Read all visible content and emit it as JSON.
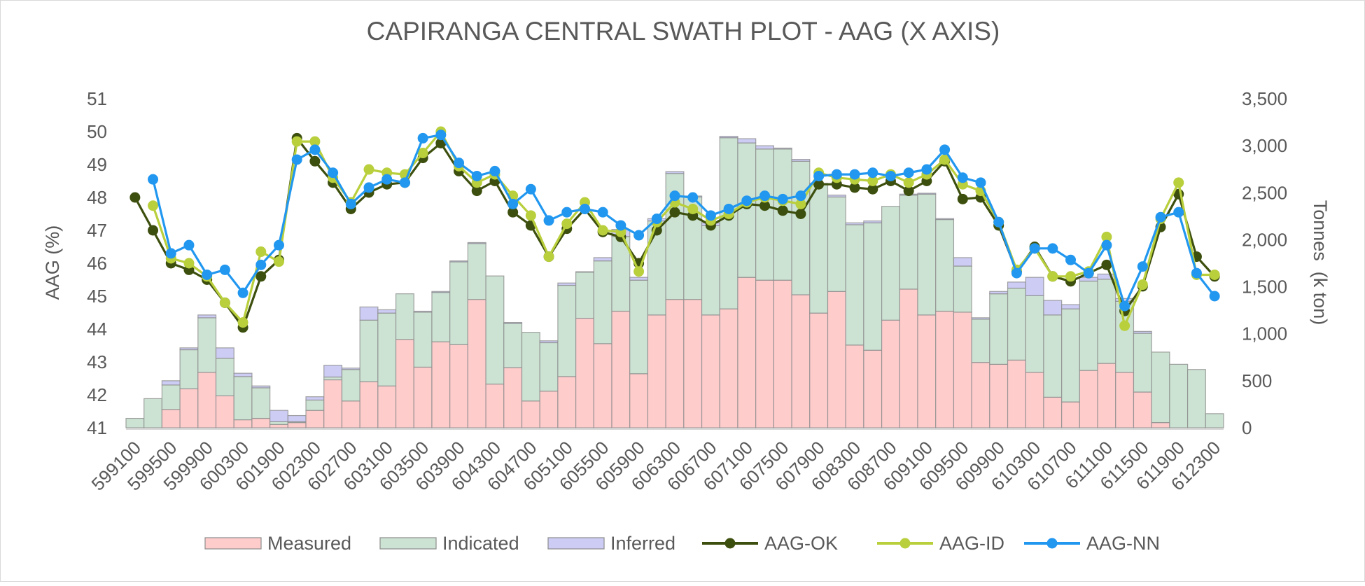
{
  "chart_data": {
    "type": "bar",
    "title": "CAPIRANGA CENTRAL SWATH PLOT - AAG (X AXIS)",
    "xlabel": "",
    "ylabel": "AAG (%)",
    "y2label": "Tonnes  (k ton)",
    "ylim": [
      41,
      51
    ],
    "y2lim": [
      0,
      3500
    ],
    "yticks": [
      "51",
      "50",
      "49",
      "48",
      "47",
      "46",
      "45",
      "44",
      "43",
      "42",
      "41"
    ],
    "y2ticks": [
      "3,500",
      "3,000",
      "2,500",
      "2,000",
      "1,500",
      "1,000",
      "500",
      "0"
    ],
    "x_tick_labels": [
      "599100",
      "599500",
      "599900",
      "600300",
      "601900",
      "602300",
      "602700",
      "603100",
      "603500",
      "603900",
      "604300",
      "604700",
      "605100",
      "605500",
      "605900",
      "606300",
      "606700",
      "607100",
      "607500",
      "607900",
      "608300",
      "608700",
      "609100",
      "609500",
      "609900",
      "610300",
      "610700",
      "611100",
      "611500",
      "611900",
      "612300"
    ],
    "categories": [
      "599100",
      "599300",
      "599500",
      "599700",
      "599900",
      "600100",
      "600300",
      "601700",
      "601900",
      "602100",
      "602300",
      "602500",
      "602700",
      "602900",
      "603100",
      "603300",
      "603500",
      "603700",
      "603900",
      "604100",
      "604300",
      "604500",
      "604700",
      "604900",
      "605100",
      "605300",
      "605500",
      "605700",
      "605900",
      "606100",
      "606300",
      "606500",
      "606700",
      "606900",
      "607100",
      "607300",
      "607500",
      "607700",
      "607900",
      "608100",
      "608300",
      "608500",
      "608700",
      "608900",
      "609100",
      "609300",
      "609500",
      "609700",
      "609900",
      "610100",
      "610300",
      "610500",
      "610700",
      "610900",
      "611100",
      "611300",
      "611500",
      "611700",
      "611900",
      "612100",
      "612300"
    ],
    "legend_position": "bottom",
    "stacked": true,
    "series": [
      {
        "name": "Measured",
        "kind": "bar",
        "axis": "right",
        "color": "#ffcccc",
        "values": [
          0,
          0,
          195,
          415,
          590,
          340,
          85,
          100,
          35,
          55,
          185,
          510,
          285,
          490,
          445,
          940,
          645,
          915,
          885,
          1365,
          465,
          640,
          285,
          390,
          545,
          1165,
          895,
          1240,
          575,
          1200,
          1365,
          1365,
          1200,
          1265,
          1600,
          1570,
          1570,
          1415,
          1220,
          1450,
          880,
          825,
          1145,
          1475,
          1200,
          1240,
          1230,
          695,
          675,
          720,
          590,
          325,
          275,
          610,
          685,
          590,
          380,
          55,
          0,
          0,
          0
        ]
      },
      {
        "name": "Indicated",
        "kind": "bar",
        "axis": "right",
        "color": "#cce3d3",
        "values": [
          100,
          310,
          260,
          415,
          580,
          400,
          460,
          325,
          30,
          10,
          110,
          30,
          335,
          655,
          775,
          485,
          585,
          525,
          880,
          595,
          1150,
          470,
          730,
          515,
          970,
          490,
          880,
          795,
          995,
          1000,
          1340,
          1090,
          950,
          1820,
          1430,
          1395,
          1395,
          1420,
          1370,
          1005,
          1280,
          1355,
          1210,
          1000,
          1285,
          975,
          490,
          460,
          750,
          765,
          815,
          875,
          990,
          950,
          895,
          755,
          625,
          750,
          675,
          620,
          150
        ]
      },
      {
        "name": "Inferred",
        "kind": "bar",
        "axis": "right",
        "color": "#ccccf5",
        "values": [
          0,
          0,
          45,
          20,
          30,
          110,
          35,
          20,
          120,
          65,
          35,
          125,
          15,
          140,
          35,
          0,
          10,
          10,
          10,
          10,
          0,
          10,
          0,
          20,
          25,
          5,
          35,
          75,
          30,
          25,
          20,
          10,
          30,
          15,
          45,
          35,
          10,
          20,
          10,
          20,
          20,
          20,
          0,
          10,
          10,
          10,
          90,
          15,
          25,
          65,
          195,
          155,
          45,
          40,
          55,
          30,
          20,
          0,
          0,
          0,
          0
        ]
      },
      {
        "name": "AAG-OK",
        "kind": "line",
        "axis": "left",
        "color": "#3d4f0e",
        "values": [
          48.0,
          47.0,
          46.0,
          45.8,
          45.5,
          44.8,
          44.05,
          45.6,
          46.1,
          49.8,
          49.1,
          48.45,
          47.65,
          48.15,
          48.4,
          48.45,
          49.2,
          49.65,
          48.8,
          48.2,
          48.5,
          47.55,
          47.15,
          46.2,
          47.05,
          47.65,
          46.95,
          46.8,
          46.0,
          47.0,
          47.55,
          47.45,
          47.15,
          47.45,
          47.8,
          47.75,
          47.6,
          47.5,
          48.4,
          48.4,
          48.3,
          48.25,
          48.5,
          48.2,
          48.5,
          49.1,
          47.95,
          48.0,
          47.15,
          45.75,
          46.5,
          45.6,
          45.45,
          45.7,
          45.95,
          44.55,
          45.3,
          47.1,
          48.1,
          46.2,
          45.6
        ]
      },
      {
        "name": "AAG-ID",
        "kind": "line",
        "axis": "left",
        "color": "#b9cf3c",
        "values": [
          null,
          47.75,
          46.15,
          46.0,
          45.6,
          44.8,
          44.2,
          46.35,
          46.05,
          49.7,
          49.7,
          48.6,
          47.85,
          48.85,
          48.75,
          48.7,
          49.35,
          50.0,
          48.95,
          48.45,
          48.7,
          48.05,
          47.45,
          46.2,
          47.2,
          47.85,
          47.0,
          46.95,
          45.75,
          47.25,
          47.85,
          47.65,
          47.3,
          47.5,
          47.85,
          48.0,
          47.9,
          47.8,
          48.75,
          48.6,
          48.55,
          48.5,
          48.7,
          48.45,
          48.7,
          49.15,
          48.4,
          48.2,
          47.25,
          45.8,
          46.45,
          45.6,
          45.6,
          45.75,
          46.8,
          44.1,
          45.35,
          47.35,
          48.45,
          45.65,
          45.65
        ]
      },
      {
        "name": "AAG-NN",
        "kind": "line",
        "axis": "left",
        "color": "#2197f0",
        "values": [
          null,
          48.55,
          46.3,
          46.55,
          45.65,
          45.8,
          45.1,
          45.95,
          46.55,
          49.15,
          49.45,
          48.75,
          47.8,
          48.3,
          48.55,
          48.45,
          49.8,
          49.9,
          49.05,
          48.65,
          48.8,
          47.8,
          48.25,
          47.3,
          47.55,
          47.65,
          47.55,
          47.15,
          46.85,
          47.35,
          48.05,
          48.0,
          47.45,
          47.65,
          47.9,
          48.05,
          47.95,
          48.05,
          48.65,
          48.7,
          48.7,
          48.75,
          48.65,
          48.75,
          48.85,
          49.45,
          48.6,
          48.45,
          47.25,
          45.7,
          46.45,
          46.45,
          46.1,
          45.7,
          46.55,
          44.7,
          45.9,
          47.4,
          47.55,
          45.7,
          45.0
        ]
      }
    ]
  }
}
